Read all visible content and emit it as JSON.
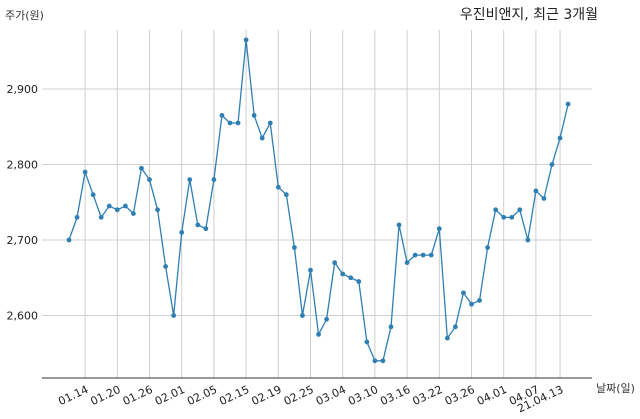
{
  "chart_data": {
    "type": "line",
    "title": "우진비앤지, 최근 3개월",
    "ylabel": "주가(원)",
    "xlabel": "날짜(일)",
    "ylim": [
      2510,
      2975
    ],
    "grid": true,
    "colors": {
      "line": "#2f7fb3",
      "grid": "#cfcfcf",
      "axis": "#333333"
    },
    "yticks": [
      {
        "value": 2600,
        "label": "2,600"
      },
      {
        "value": 2700,
        "label": "2,700"
      },
      {
        "value": 2800,
        "label": "2,800"
      },
      {
        "value": 2900,
        "label": "2,900"
      }
    ],
    "xticks": [
      {
        "index": 2,
        "label": "01.14"
      },
      {
        "index": 6,
        "label": "01.20"
      },
      {
        "index": 10,
        "label": "01.26"
      },
      {
        "index": 14,
        "label": "02.01"
      },
      {
        "index": 18,
        "label": "02.05"
      },
      {
        "index": 22,
        "label": "02.15"
      },
      {
        "index": 26,
        "label": "02.19"
      },
      {
        "index": 30,
        "label": "02.25"
      },
      {
        "index": 34,
        "label": "03.04"
      },
      {
        "index": 38,
        "label": "03.10"
      },
      {
        "index": 42,
        "label": "03.16"
      },
      {
        "index": 46,
        "label": "03.22"
      },
      {
        "index": 50,
        "label": "03.26"
      },
      {
        "index": 54,
        "label": "04.01"
      },
      {
        "index": 58,
        "label": "04.07"
      },
      {
        "index": 61,
        "label": "21.04.13"
      }
    ],
    "series": [
      {
        "values": [
          2700,
          2730,
          2790,
          2760,
          2730,
          2745,
          2740,
          2745,
          2735,
          2795,
          2780,
          2740,
          2665,
          2600,
          2710,
          2780,
          2720,
          2715,
          2780,
          2865,
          2855,
          2855,
          2965,
          2865,
          2835,
          2855,
          2770,
          2760,
          2690,
          2600,
          2660,
          2575,
          2595,
          2670,
          2655,
          2650,
          2645,
          2565,
          2540,
          2540,
          2585,
          2720,
          2670,
          2680,
          2680,
          2680,
          2715,
          2570,
          2585,
          2630,
          2615,
          2620,
          2690,
          2740,
          2730,
          2730,
          2740,
          2700,
          2765,
          2755,
          2800,
          2835,
          2880
        ]
      }
    ]
  }
}
